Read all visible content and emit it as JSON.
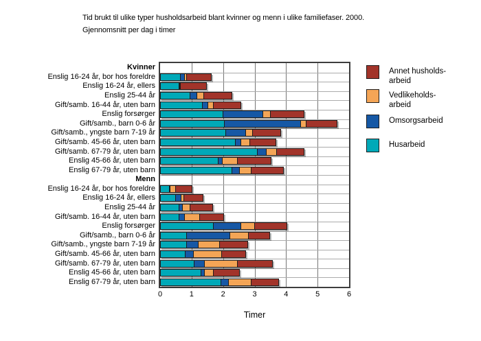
{
  "title": {
    "line1": "Tid brukt til ulike typer husholdsarbeid blant kvinner og menn i ulike familiefaser. 2000.",
    "line2": "Gjennomsnitt per dag i timer"
  },
  "x_axis": {
    "label": "Timer",
    "ticks": [
      "0",
      "1",
      "2",
      "3",
      "4",
      "5",
      "6"
    ],
    "min": 0,
    "max": 6
  },
  "legend": {
    "items": [
      {
        "slug": "annet-husholdsarbeid",
        "lines": [
          "Annet husholds-",
          "arbeid"
        ],
        "color": "#a2342a"
      },
      {
        "slug": "vedlikeholdsarbeid",
        "lines": [
          "Vedlikeholds-",
          "arbeid"
        ],
        "color": "#f4a556"
      },
      {
        "slug": "omsorgsarbeid",
        "lines": [
          "Omsorgsarbeid"
        ],
        "color": "#1658a5"
      },
      {
        "slug": "husarbeid",
        "lines": [
          "Husarbeid"
        ],
        "color": "#00a9b8"
      }
    ]
  },
  "chart_data": {
    "type": "bar",
    "orientation": "horizontal",
    "stacked": true,
    "title": "Tid brukt til ulike typer husholdsarbeid blant kvinner og menn i ulike familiefaser. 2000. Gjennomsnitt per dag i timer",
    "xlabel": "Timer",
    "xlim": [
      0,
      6
    ],
    "grid": true,
    "legend_position": "right",
    "series_order": [
      "Husarbeid",
      "Omsorgsarbeid",
      "Vedlikeholdsarbeid",
      "Annet husholdsarbeid"
    ],
    "series_slugs": [
      "husarbeid",
      "omsorgsarbeid",
      "vedlikeholdsarbeid",
      "annet-husholdsarbeid"
    ],
    "series_colors": [
      "#00a9b8",
      "#1658a5",
      "#f4a556",
      "#a2342a"
    ],
    "groups": [
      {
        "header": "Kvinner",
        "rows": [
          {
            "label": "Enslig 16-24 år, bor hos foreldre",
            "values": [
              0.65,
              0.15,
              0.1,
              0.8
            ]
          },
          {
            "label": "Enslig 16-24 år, ellers",
            "values": [
              0.6,
              0.05,
              0.05,
              0.85
            ]
          },
          {
            "label": "Enslig 25-44 år",
            "values": [
              0.95,
              0.25,
              0.25,
              0.9
            ]
          },
          {
            "label": "Gift/samb. 16-44 år, uten barn",
            "values": [
              1.35,
              0.2,
              0.2,
              0.9
            ]
          },
          {
            "label": "Enslig forsørger",
            "values": [
              2.0,
              1.3,
              0.25,
              1.1
            ]
          },
          {
            "label": "Gift/samb., barn 0-6 år",
            "values": [
              2.05,
              2.45,
              0.2,
              1.0
            ]
          },
          {
            "label": "Gift/samb., yngste barn 7-19 år",
            "values": [
              2.1,
              0.65,
              0.25,
              0.9
            ]
          },
          {
            "label": "Gift/samb. 45-66 år, uten barn",
            "values": [
              2.4,
              0.2,
              0.3,
              0.85
            ]
          },
          {
            "label": "Gift/samb. 67-79 år, uten barn",
            "values": [
              3.1,
              0.3,
              0.35,
              0.9
            ]
          },
          {
            "label": "Enslig 45-66 år, uten barn",
            "values": [
              1.85,
              0.15,
              0.5,
              1.1
            ]
          },
          {
            "label": "Enslig 67-79 år, uten barn",
            "values": [
              2.3,
              0.25,
              0.4,
              1.05
            ]
          }
        ]
      },
      {
        "header": "Menn",
        "rows": [
          {
            "label": "Enslig 16-24 år, bor hos foreldre",
            "values": [
              0.3,
              0.05,
              0.2,
              0.55
            ]
          },
          {
            "label": "Enslig 16-24 år, ellers",
            "values": [
              0.5,
              0.2,
              0.1,
              0.65
            ]
          },
          {
            "label": "Enslig 25-44 år",
            "values": [
              0.6,
              0.15,
              0.25,
              0.75
            ]
          },
          {
            "label": "Gift/samb. 16-44 år, uten barn",
            "values": [
              0.6,
              0.2,
              0.5,
              0.8
            ]
          },
          {
            "label": "Enslig forsørger",
            "values": [
              1.7,
              0.9,
              0.45,
              1.05
            ]
          },
          {
            "label": "Gift/samb., barn 0-6 år",
            "values": [
              0.85,
              1.4,
              0.6,
              0.7
            ]
          },
          {
            "label": "Gift/samb., yngste barn 7-19 år",
            "values": [
              0.85,
              0.4,
              0.7,
              0.9
            ]
          },
          {
            "label": "Gift/samb. 45-66 år, uten barn",
            "values": [
              0.8,
              0.3,
              0.9,
              0.8
            ]
          },
          {
            "label": "Gift/samb. 67-79 år, uten barn",
            "values": [
              1.1,
              0.35,
              1.05,
              1.15
            ]
          },
          {
            "label": "Enslig 45-66 år, uten barn",
            "values": [
              1.3,
              0.15,
              0.3,
              0.85
            ]
          },
          {
            "label": "Enslig 67-79 år, uten barn",
            "values": [
              1.95,
              0.25,
              0.75,
              0.9
            ]
          }
        ]
      }
    ]
  }
}
